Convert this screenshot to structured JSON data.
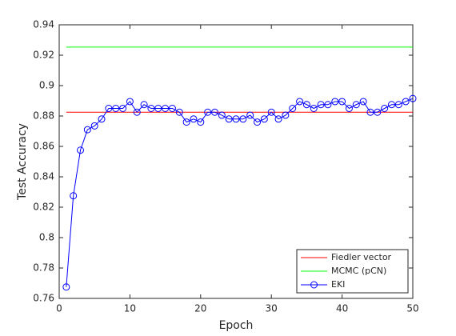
{
  "chart_data": {
    "type": "line",
    "xlabel": "Epoch",
    "ylabel": "Test Accuracy",
    "xlim": [
      0,
      50
    ],
    "xticks": [
      0,
      10,
      20,
      30,
      40,
      50
    ],
    "ylim": [
      0.76,
      0.94
    ],
    "yticks": [
      0.76,
      0.78,
      0.8,
      0.82,
      0.84,
      0.86,
      0.88,
      0.9,
      0.92,
      0.94
    ],
    "legend": "southeast",
    "series": [
      {
        "name": "Fiedler vector",
        "color": "#ff0000",
        "marker": false,
        "x": [
          1,
          50
        ],
        "values": [
          0.8825,
          0.8825
        ]
      },
      {
        "name": "MCMC (pCN)",
        "color": "#00ff00",
        "marker": false,
        "x": [
          1,
          50
        ],
        "values": [
          0.9253,
          0.9253
        ]
      },
      {
        "name": "EKI",
        "color": "#0000ff",
        "marker": true,
        "x": [
          1,
          2,
          3,
          4,
          5,
          6,
          7,
          8,
          9,
          10,
          11,
          12,
          13,
          14,
          15,
          16,
          17,
          18,
          19,
          20,
          21,
          22,
          23,
          24,
          25,
          26,
          27,
          28,
          29,
          30,
          31,
          32,
          33,
          34,
          35,
          36,
          37,
          38,
          39,
          40,
          41,
          42,
          43,
          44,
          45,
          46,
          47,
          48,
          49,
          50
        ],
        "values": [
          0.7675,
          0.8275,
          0.8575,
          0.871,
          0.8735,
          0.878,
          0.885,
          0.885,
          0.885,
          0.8895,
          0.8825,
          0.8875,
          0.885,
          0.885,
          0.885,
          0.885,
          0.8825,
          0.876,
          0.878,
          0.876,
          0.8825,
          0.8825,
          0.8805,
          0.878,
          0.878,
          0.878,
          0.8805,
          0.876,
          0.878,
          0.8825,
          0.878,
          0.8805,
          0.885,
          0.8895,
          0.8875,
          0.885,
          0.8875,
          0.8875,
          0.8895,
          0.8895,
          0.885,
          0.8875,
          0.8895,
          0.8825,
          0.8825,
          0.885,
          0.8875,
          0.8875,
          0.8895,
          0.8915
        ]
      }
    ]
  }
}
